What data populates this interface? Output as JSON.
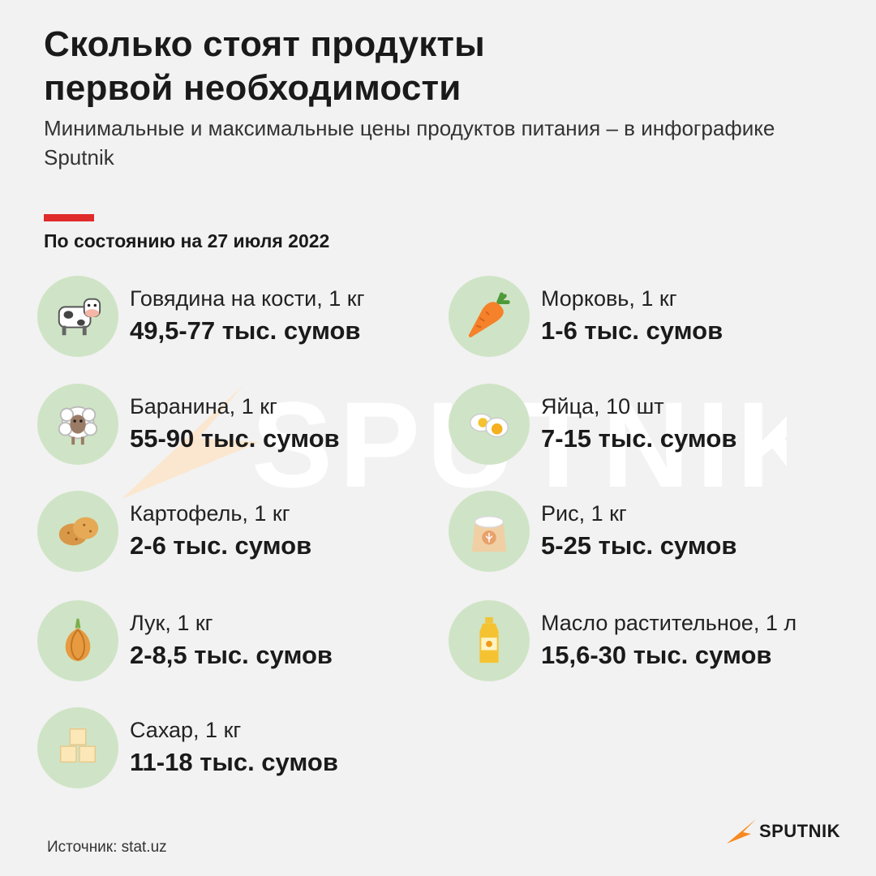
{
  "header": {
    "title_line1": "Сколько стоят продукты",
    "title_line2": "первой необходимости",
    "subtitle": "Минимальные и максимальные цены продуктов питания – в инфографике Sputnik",
    "date": "По состоянию на 27 июля 2022"
  },
  "items": [
    {
      "name": "Говядина на кости, 1 кг",
      "price": "49,5-77 тыс. сумов",
      "icon": "cow-icon"
    },
    {
      "name": "Морковь, 1 кг",
      "price": "1-6 тыс. сумов",
      "icon": "carrot-icon"
    },
    {
      "name": "Баранина, 1 кг",
      "price": "55-90 тыс. сумов",
      "icon": "sheep-icon"
    },
    {
      "name": "Яйца, 10 шт",
      "price": "7-15 тыс. сумов",
      "icon": "egg-icon"
    },
    {
      "name": "Картофель, 1 кг",
      "price": "2-6 тыс. сумов",
      "icon": "potato-icon"
    },
    {
      "name": "Рис, 1 кг",
      "price": "5-25 тыс. сумов",
      "icon": "rice-sack-icon"
    },
    {
      "name": "Лук, 1 кг",
      "price": "2-8,5 тыс. сумов",
      "icon": "onion-icon"
    },
    {
      "name": "Масло растительное, 1 л",
      "price": "15,6-30 тыс. сумов",
      "icon": "oil-bottle-icon"
    },
    {
      "name": "Сахар, 1 кг",
      "price": "11-18 тыс. сумов",
      "icon": "sugar-cubes-icon"
    }
  ],
  "footer": {
    "source": "Источник: stat.uz",
    "logo": "SPUTNIK"
  },
  "watermark": "SPUTNIK",
  "colors": {
    "background": "#f2f2f2",
    "accent": "#e02b2b",
    "circle": "#cfe4c6",
    "brand_orange": "#f7891f"
  }
}
